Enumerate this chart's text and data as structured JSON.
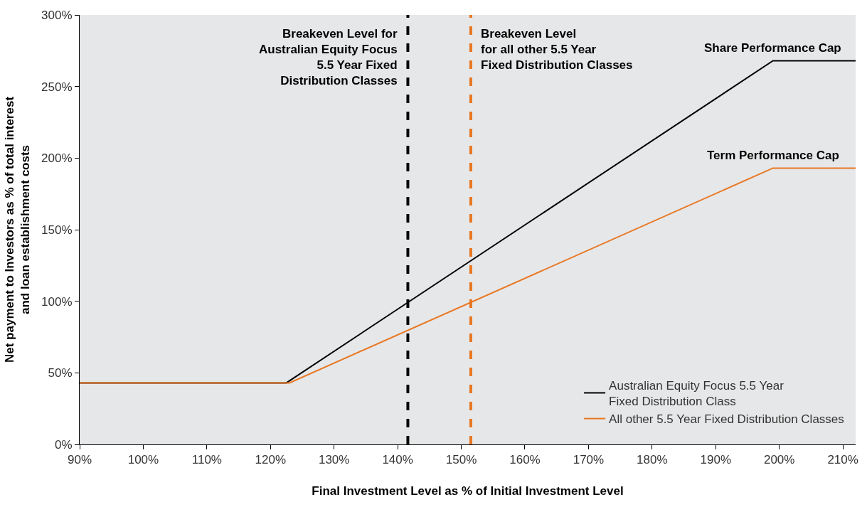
{
  "chart_data": {
    "type": "line",
    "xlabel": "Final Investment Level as % of Initial Investment Level",
    "ylabel": "Net payment to Investors as % of total interest\nand loan establishment costs",
    "xlim": [
      90,
      212
    ],
    "ylim": [
      0,
      300
    ],
    "xticks": [
      {
        "value": 90,
        "label": "90%"
      },
      {
        "value": 100,
        "label": "100%"
      },
      {
        "value": 110,
        "label": "110%"
      },
      {
        "value": 120,
        "label": "120%"
      },
      {
        "value": 130,
        "label": "130%"
      },
      {
        "value": 140,
        "label": "140%"
      },
      {
        "value": 150,
        "label": "150%"
      },
      {
        "value": 160,
        "label": "160%"
      },
      {
        "value": 170,
        "label": "170%"
      },
      {
        "value": 180,
        "label": "180%"
      },
      {
        "value": 190,
        "label": "190%"
      },
      {
        "value": 200,
        "label": "200%"
      },
      {
        "value": 210,
        "label": "210%"
      }
    ],
    "yticks": [
      {
        "value": 0,
        "label": "0%"
      },
      {
        "value": 50,
        "label": "50%"
      },
      {
        "value": 100,
        "label": "100%"
      },
      {
        "value": 150,
        "label": "150%"
      },
      {
        "value": 200,
        "label": "200%"
      },
      {
        "value": 250,
        "label": "250%"
      },
      {
        "value": 300,
        "label": "300%"
      }
    ],
    "series": [
      {
        "name": "Australian Equity Focus 5.5 Year\nFixed Distribution Class",
        "color": "#000000",
        "x": [
          90,
          122.5,
          199,
          212
        ],
        "values": [
          43,
          43,
          268,
          268
        ]
      },
      {
        "name": "All other 5.5 Year Fixed Distribution Classes",
        "color": "#e87722",
        "x": [
          90,
          123,
          199,
          212
        ],
        "values": [
          43,
          43,
          193,
          193
        ]
      }
    ],
    "ref_lines": [
      {
        "axis": "x",
        "value": 141.6,
        "label": "Breakeven Level for\nAustralian Equity Focus\n5.5 Year Fixed\nDistribution Classes",
        "color": "#000000",
        "line_style": "dashed"
      },
      {
        "axis": "x",
        "value": 151.5,
        "label": "Breakeven Level\nfor all other 5.5 Year\nFixed Distribution Classes",
        "color": "#e87722",
        "line_style": "dashed"
      }
    ],
    "annotations": [
      {
        "text": "Share Performance Cap",
        "x": 199,
        "y": 268
      },
      {
        "text": "Term Performance Cap",
        "x": 199,
        "y": 193
      }
    ],
    "grid": false,
    "legend": "bottom right",
    "marker": "none",
    "line_style": "solid"
  }
}
